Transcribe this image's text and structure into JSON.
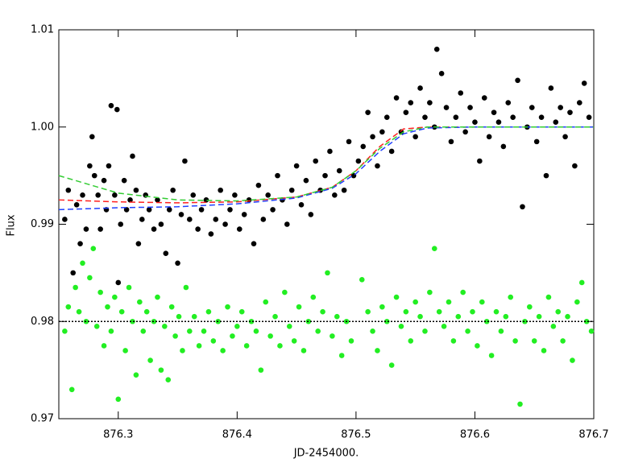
{
  "chart_data": {
    "type": "scatter",
    "xlabel": "JD-2454000.",
    "ylabel": "Flux",
    "xlim": [
      876.25,
      876.7
    ],
    "ylim": [
      0.97,
      1.01
    ],
    "xticks": [
      876.3,
      876.4,
      876.5,
      876.6,
      876.7
    ],
    "yticks": [
      1.01,
      {
        "value": 1,
        "label": "1.00"
      },
      0.99,
      0.98,
      0.97
    ],
    "series": [
      {
        "mode": "markers",
        "color": "#000000",
        "x": [
          876.255,
          876.258,
          876.262,
          876.265,
          876.268,
          876.27,
          876.273,
          876.276,
          876.278,
          876.28,
          876.283,
          876.285,
          876.288,
          876.29,
          876.292,
          876.294,
          876.297,
          876.299,
          876.3,
          876.302,
          876.305,
          876.307,
          876.31,
          876.312,
          876.315,
          876.317,
          876.32,
          876.323,
          876.326,
          876.33,
          876.333,
          876.336,
          876.34,
          876.343,
          876.346,
          876.35,
          876.353,
          876.356,
          876.36,
          876.363,
          876.367,
          876.37,
          876.374,
          876.378,
          876.382,
          876.386,
          876.39,
          876.394,
          876.398,
          876.402,
          876.406,
          876.41,
          876.414,
          876.418,
          876.422,
          876.426,
          876.43,
          876.434,
          876.438,
          876.442,
          876.446,
          876.45,
          876.454,
          876.458,
          876.462,
          876.466,
          876.47,
          876.474,
          876.478,
          876.482,
          876.486,
          876.49,
          876.494,
          876.498,
          876.502,
          876.506,
          876.51,
          876.514,
          876.518,
          876.522,
          876.526,
          876.53,
          876.534,
          876.538,
          876.542,
          876.546,
          876.55,
          876.554,
          876.558,
          876.562,
          876.566,
          876.568,
          876.572,
          876.576,
          876.58,
          876.584,
          876.588,
          876.592,
          876.596,
          876.6,
          876.604,
          876.608,
          876.612,
          876.616,
          876.62,
          876.624,
          876.628,
          876.632,
          876.636,
          876.64,
          876.644,
          876.648,
          876.652,
          876.656,
          876.66,
          876.664,
          876.668,
          876.672,
          876.676,
          876.68,
          876.684,
          876.688,
          876.692,
          876.696
        ],
        "values": [
          0.9905,
          0.9935,
          0.985,
          0.992,
          0.988,
          0.993,
          0.9895,
          0.996,
          0.999,
          0.995,
          0.993,
          0.9895,
          0.9945,
          0.9915,
          0.996,
          1.0022,
          0.993,
          1.0018,
          0.984,
          0.99,
          0.9945,
          0.9915,
          0.9925,
          0.997,
          0.9935,
          0.988,
          0.9905,
          0.993,
          0.9915,
          0.9895,
          0.9925,
          0.99,
          0.987,
          0.9915,
          0.9935,
          0.986,
          0.991,
          0.9965,
          0.9905,
          0.993,
          0.9895,
          0.9915,
          0.9925,
          0.989,
          0.9905,
          0.9935,
          0.99,
          0.9915,
          0.993,
          0.9895,
          0.991,
          0.9925,
          0.988,
          0.994,
          0.9905,
          0.993,
          0.9915,
          0.995,
          0.9925,
          0.99,
          0.9935,
          0.996,
          0.992,
          0.9945,
          0.991,
          0.9965,
          0.9935,
          0.995,
          0.9975,
          0.993,
          0.9955,
          0.9935,
          0.9985,
          0.995,
          0.9965,
          0.998,
          1.0015,
          0.999,
          0.996,
          0.9995,
          1.001,
          0.9975,
          1.003,
          0.9995,
          1.0015,
          1.0025,
          0.999,
          1.004,
          1.001,
          1.0025,
          1.0,
          1.008,
          1.0055,
          1.002,
          0.9985,
          1.001,
          1.0035,
          0.9995,
          1.002,
          1.0005,
          0.9965,
          1.003,
          0.999,
          1.0015,
          1.0005,
          0.998,
          1.0025,
          1.001,
          1.0048,
          0.9918,
          1.0,
          1.002,
          0.9985,
          1.001,
          0.995,
          1.004,
          1.0005,
          1.002,
          0.999,
          1.0015,
          0.996,
          1.0025,
          1.0045,
          1.001
        ]
      },
      {
        "mode": "markers",
        "color": "#22ee22",
        "x": [
          876.255,
          876.258,
          876.261,
          876.264,
          876.267,
          876.27,
          876.273,
          876.276,
          876.279,
          876.282,
          876.285,
          876.288,
          876.291,
          876.294,
          876.297,
          876.3,
          876.303,
          876.306,
          876.309,
          876.312,
          876.315,
          876.318,
          876.321,
          876.324,
          876.327,
          876.33,
          876.333,
          876.336,
          876.339,
          876.342,
          876.345,
          876.348,
          876.351,
          876.354,
          876.357,
          876.36,
          876.364,
          876.368,
          876.372,
          876.376,
          876.38,
          876.384,
          876.388,
          876.392,
          876.396,
          876.4,
          876.404,
          876.408,
          876.412,
          876.416,
          876.42,
          876.424,
          876.428,
          876.432,
          876.436,
          876.44,
          876.444,
          876.448,
          876.452,
          876.456,
          876.46,
          876.464,
          876.468,
          876.472,
          876.476,
          876.48,
          876.484,
          876.488,
          876.492,
          876.496,
          876.505,
          876.51,
          876.514,
          876.518,
          876.522,
          876.526,
          876.53,
          876.534,
          876.538,
          876.542,
          876.546,
          876.55,
          876.554,
          876.558,
          876.562,
          876.566,
          876.57,
          876.574,
          876.578,
          876.582,
          876.586,
          876.59,
          876.594,
          876.598,
          876.602,
          876.606,
          876.61,
          876.614,
          876.618,
          876.622,
          876.626,
          876.63,
          876.634,
          876.638,
          876.642,
          876.646,
          876.65,
          876.654,
          876.658,
          876.662,
          876.666,
          876.67,
          876.674,
          876.678,
          876.682,
          876.686,
          876.69,
          876.694,
          876.698
        ],
        "values": [
          0.979,
          0.9815,
          0.973,
          0.9835,
          0.981,
          0.986,
          0.98,
          0.9845,
          0.9875,
          0.9795,
          0.983,
          0.9775,
          0.9815,
          0.979,
          0.9825,
          0.972,
          0.981,
          0.977,
          0.9835,
          0.98,
          0.9745,
          0.982,
          0.979,
          0.981,
          0.976,
          0.98,
          0.9825,
          0.975,
          0.9795,
          0.974,
          0.9815,
          0.9785,
          0.9805,
          0.977,
          0.9835,
          0.979,
          0.9805,
          0.9775,
          0.979,
          0.981,
          0.978,
          0.98,
          0.977,
          0.9815,
          0.9785,
          0.9795,
          0.981,
          0.9775,
          0.98,
          0.979,
          0.975,
          0.982,
          0.9785,
          0.9805,
          0.9775,
          0.983,
          0.9795,
          0.978,
          0.9815,
          0.977,
          0.98,
          0.9825,
          0.979,
          0.981,
          0.985,
          0.9785,
          0.9805,
          0.9765,
          0.98,
          0.978,
          0.9843,
          0.981,
          0.979,
          0.977,
          0.9815,
          0.98,
          0.9755,
          0.9825,
          0.9795,
          0.981,
          0.978,
          0.982,
          0.9805,
          0.979,
          0.983,
          0.9875,
          0.981,
          0.9795,
          0.982,
          0.978,
          0.9805,
          0.983,
          0.979,
          0.981,
          0.9775,
          0.982,
          0.98,
          0.9765,
          0.981,
          0.979,
          0.9805,
          0.9825,
          0.978,
          0.9715,
          0.98,
          0.9815,
          0.978,
          0.9805,
          0.977,
          0.9825,
          0.9795,
          0.981,
          0.978,
          0.9805,
          0.976,
          0.982,
          0.984,
          0.98,
          0.979
        ]
      },
      {
        "mode": "line",
        "dash": "dotted",
        "color": "#000000",
        "x": [
          876.25,
          876.7
        ],
        "values": [
          0.98,
          0.98
        ]
      },
      {
        "mode": "line",
        "dash": "dashed",
        "color": "#ff2020",
        "x": [
          876.25,
          876.3,
          876.35,
          876.4,
          876.45,
          876.48,
          876.5,
          876.52,
          876.54,
          876.56,
          876.6,
          876.7
        ],
        "values": [
          0.9925,
          0.9923,
          0.9922,
          0.9923,
          0.9928,
          0.9938,
          0.9955,
          0.998,
          0.9998,
          1.0,
          1.0,
          1.0
        ]
      },
      {
        "mode": "line",
        "dash": "dashed",
        "color": "#2040ff",
        "x": [
          876.25,
          876.3,
          876.35,
          876.4,
          876.45,
          876.48,
          876.5,
          876.52,
          876.54,
          876.56,
          876.6,
          876.7
        ],
        "values": [
          0.9915,
          0.9917,
          0.9918,
          0.9921,
          0.9927,
          0.9937,
          0.9952,
          0.9975,
          0.9993,
          0.9999,
          1.0,
          1.0
        ]
      },
      {
        "mode": "line",
        "dash": "dashed",
        "color": "#33cc33",
        "x": [
          876.25,
          876.3,
          876.35,
          876.4,
          876.45,
          876.48,
          876.5,
          876.52,
          876.54,
          876.56,
          876.6,
          876.7
        ],
        "values": [
          0.995,
          0.9932,
          0.9925,
          0.9924,
          0.9928,
          0.9938,
          0.9955,
          0.9978,
          0.9995,
          1.0,
          1.0,
          1.0
        ]
      }
    ]
  }
}
